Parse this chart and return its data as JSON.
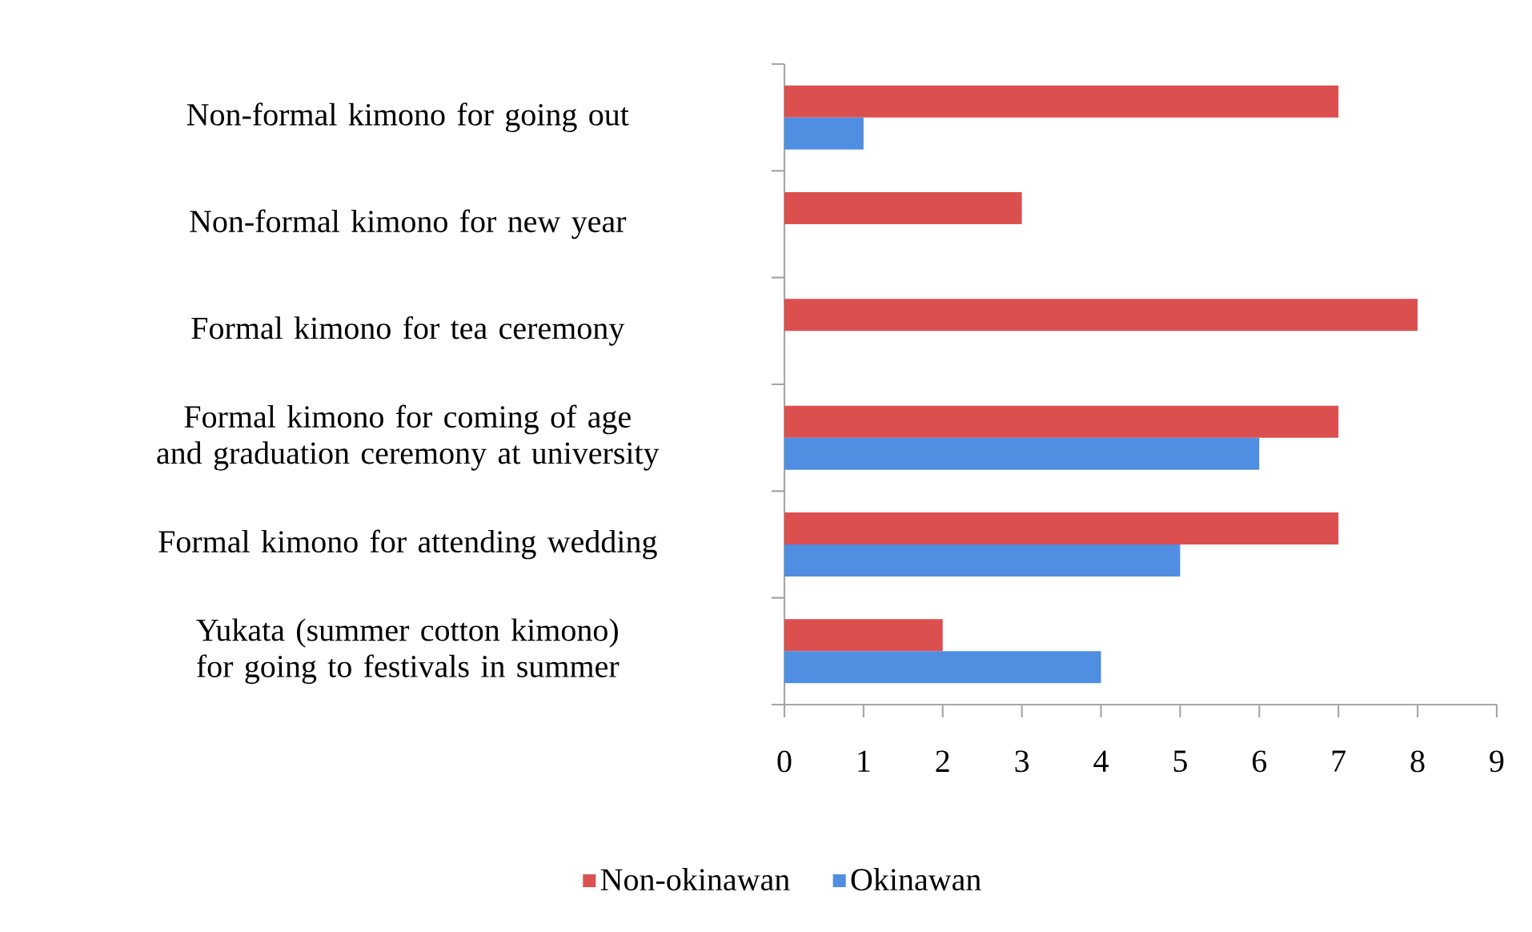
{
  "chart_data": {
    "type": "bar",
    "orientation": "horizontal",
    "categories": [
      "Non-formal kimono for going out",
      "Non-formal kimono for new year",
      "Formal kimono for tea ceremony",
      "Formal kimono for coming of age and graduation ceremony at university",
      "Formal kimono for attending wedding",
      "Yukata (summer cotton kimono) for going to festivals in summer"
    ],
    "series": [
      {
        "name": "Non-okinawan",
        "color": "#dc4f4f",
        "values": [
          7,
          3,
          8,
          7,
          7,
          2
        ]
      },
      {
        "name": "Okinawan",
        "color": "#4f8ee0",
        "values": [
          1,
          0,
          0,
          6,
          5,
          4
        ]
      }
    ],
    "xlim": [
      0,
      9
    ],
    "xticks": [
      0,
      1,
      2,
      3,
      4,
      5,
      6,
      7,
      8,
      9
    ],
    "grid": false,
    "legend": "bottom"
  }
}
